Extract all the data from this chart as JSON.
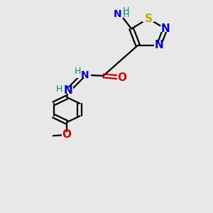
{
  "bg_color": "#e8e8e8",
  "atom_colors": {
    "C": "#000000",
    "N": "#0000cc",
    "O": "#cc0000",
    "S": "#bbaa00",
    "H": "#008888"
  },
  "bond_color": "#000000",
  "bond_width": 1.6,
  "figsize": [
    3.0,
    3.0
  ],
  "dpi": 100
}
